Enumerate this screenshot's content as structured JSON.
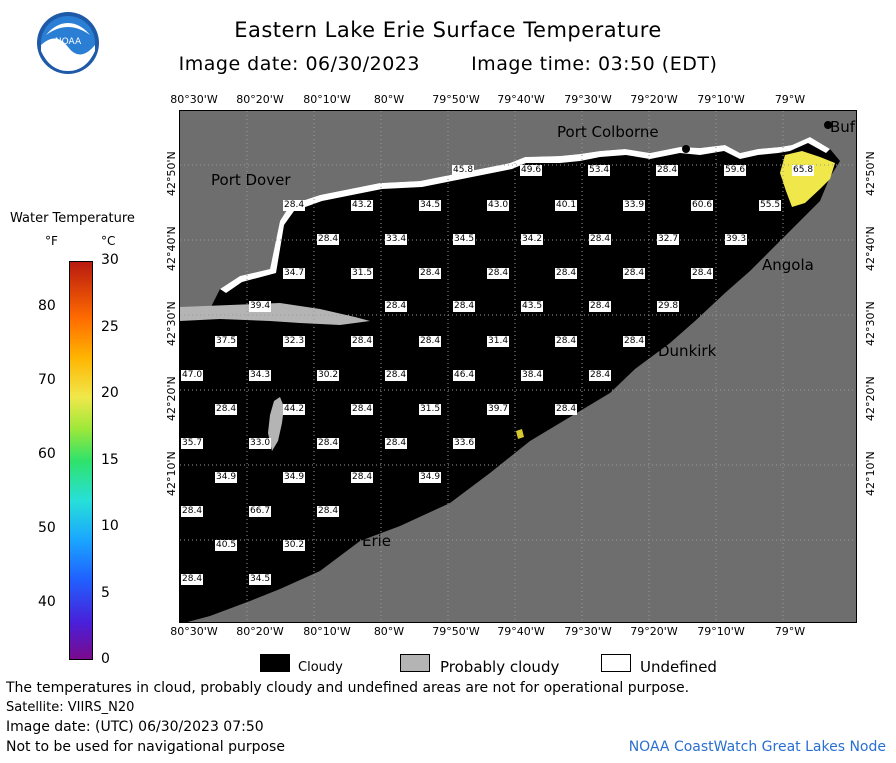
{
  "header": {
    "title": "Eastern Lake Erie Surface Temperature",
    "image_date": "Image date: 06/30/2023",
    "image_time": "Image time: 03:50 (EDT)"
  },
  "logo": {
    "text": "NOAA"
  },
  "colorbar": {
    "title": "Water Temperature",
    "unit_f": "°F",
    "unit_c": "°C",
    "f_ticks": [
      "80",
      "70",
      "60",
      "50",
      "40"
    ],
    "c_ticks": [
      "30",
      "25",
      "20",
      "15",
      "10",
      "5",
      "0"
    ]
  },
  "map": {
    "lon_labels": [
      "80°30'W",
      "80°20'W",
      "80°10'W",
      "80°W",
      "79°50'W",
      "79°40'W",
      "79°30'W",
      "79°20'W",
      "79°10'W",
      "79°W"
    ],
    "lat_labels": [
      "42°50'N",
      "42°40'N",
      "42°30'N",
      "42°20'N",
      "42°10'N"
    ],
    "cities": {
      "port_colborne": "Port Colborne",
      "port_dover": "Port Dover",
      "buffalo": "Buf",
      "angola": "Angola",
      "dunkirk": "Dunkirk",
      "erie": "Erie"
    },
    "temperature_labels": [
      "45.8",
      "49.6",
      "53.4",
      "28.4",
      "59.6",
      "65.8",
      "28.4",
      "43.2",
      "34.5",
      "43.0",
      "40.1",
      "33.9",
      "60.6",
      "55.5",
      "28.4",
      "33.4",
      "34.5",
      "34.2",
      "28.4",
      "32.7",
      "39.3",
      "34.7",
      "31.5",
      "28.4",
      "28.4",
      "28.4",
      "28.4",
      "28.4",
      "39.4",
      "28.4",
      "28.4",
      "43.5",
      "28.4",
      "29.8",
      "37.5",
      "32.3",
      "28.4",
      "28.4",
      "31.4",
      "28.4",
      "28.4",
      "47.0",
      "34.3",
      "30.2",
      "28.4",
      "46.4",
      "38.4",
      "28.4",
      "28.4",
      "44.2",
      "28.4",
      "31.5",
      "39.7",
      "28.4",
      "35.7",
      "33.0",
      "28.4",
      "28.4",
      "33.6",
      "34.9",
      "34.9",
      "28.4",
      "34.9",
      "28.4",
      "66.7",
      "28.4",
      "40.5",
      "30.2",
      "28.4",
      "34.5"
    ]
  },
  "legend": {
    "cloudy": "Cloudy",
    "probably_cloudy": "Probably cloudy",
    "undefined": "Undefined",
    "colors": {
      "cloudy": "#000000",
      "probably_cloudy": "#b4b4b4",
      "undefined": "#ffffff",
      "land": "#6e6e6e"
    }
  },
  "notes": {
    "disclaimer": "The temperatures in cloud, probably cloudy and undefined areas are not for operational purpose.",
    "satellite": "Satellite: VIIRS_N20",
    "utc_date": "Image date: (UTC) 06/30/2023  07:50",
    "nav": "Not to be used for navigational purpose",
    "credit": "NOAA CoastWatch Great Lakes Node"
  }
}
